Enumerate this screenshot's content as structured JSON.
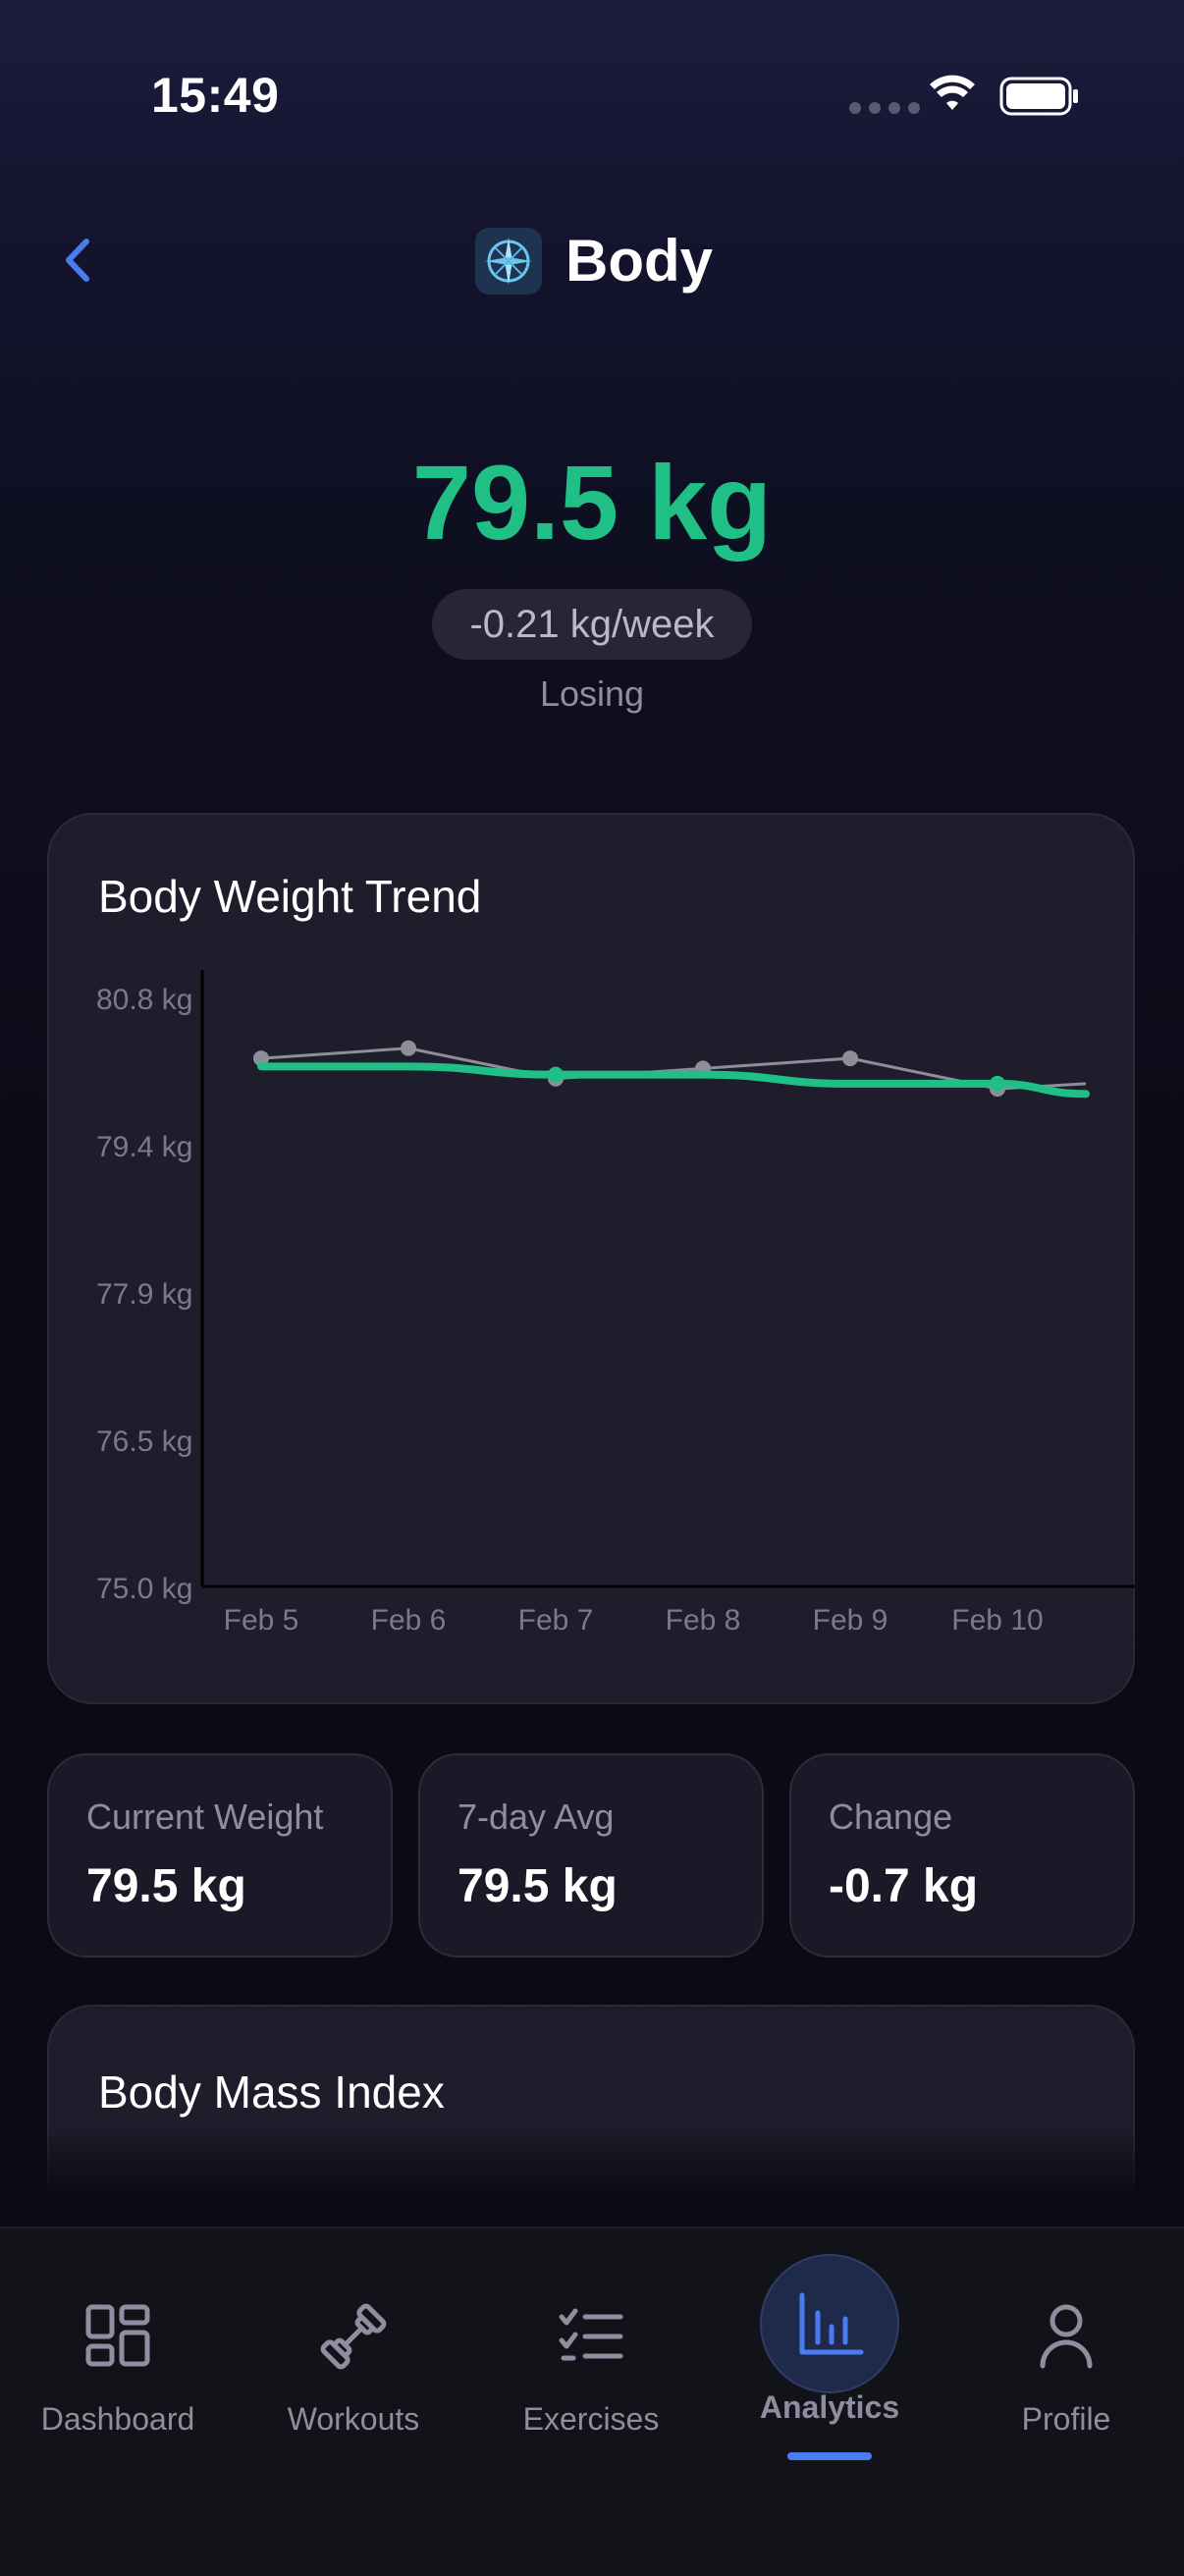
{
  "status_bar": {
    "time": "15:49"
  },
  "header": {
    "title": "Body",
    "back_icon": "chevron-left-icon",
    "logo_icon": "compass-icon"
  },
  "hero": {
    "weight": "79.5 kg",
    "rate": "-0.21 kg/week",
    "status": "Losing"
  },
  "chart": {
    "title": "Body Weight Trend",
    "chart_data": {
      "type": "line",
      "title": "Body Weight Trend",
      "x": [
        "Feb 5",
        "Feb 6",
        "Feb 7",
        "Feb 8",
        "Feb 9",
        "Feb 10"
      ],
      "y_ticks": [
        "80.8 kg",
        "79.4 kg",
        "77.9 kg",
        "76.5 kg",
        "75.0 kg"
      ],
      "ylim": [
        75.0,
        80.8
      ],
      "series": [
        {
          "values": [
            80.2,
            80.3,
            80.0,
            80.1,
            80.2,
            79.9
          ],
          "color": "#8e8e98"
        },
        {
          "values": [
            80.12,
            80.12,
            80.04,
            80.04,
            79.95,
            79.95
          ],
          "color": "#1fbf85"
        }
      ],
      "grid": false
    }
  },
  "stats": [
    {
      "label": "Current Weight",
      "value": "79.5 kg"
    },
    {
      "label": "7-day Avg",
      "value": "79.5 kg"
    },
    {
      "label": "Change",
      "value": "-0.7 kg"
    }
  ],
  "bmi": {
    "title": "Body Mass Index"
  },
  "tabs": [
    {
      "label": "Dashboard",
      "icon": "dashboard-grid-icon"
    },
    {
      "label": "Workouts",
      "icon": "dumbbell-icon"
    },
    {
      "label": "Exercises",
      "icon": "checklist-icon"
    },
    {
      "label": "Analytics",
      "icon": "bar-chart-icon",
      "active": true
    },
    {
      "label": "Profile",
      "icon": "person-icon"
    }
  ],
  "colors": {
    "accent_green": "#1fbf85",
    "accent_blue": "#4a7cf0"
  }
}
